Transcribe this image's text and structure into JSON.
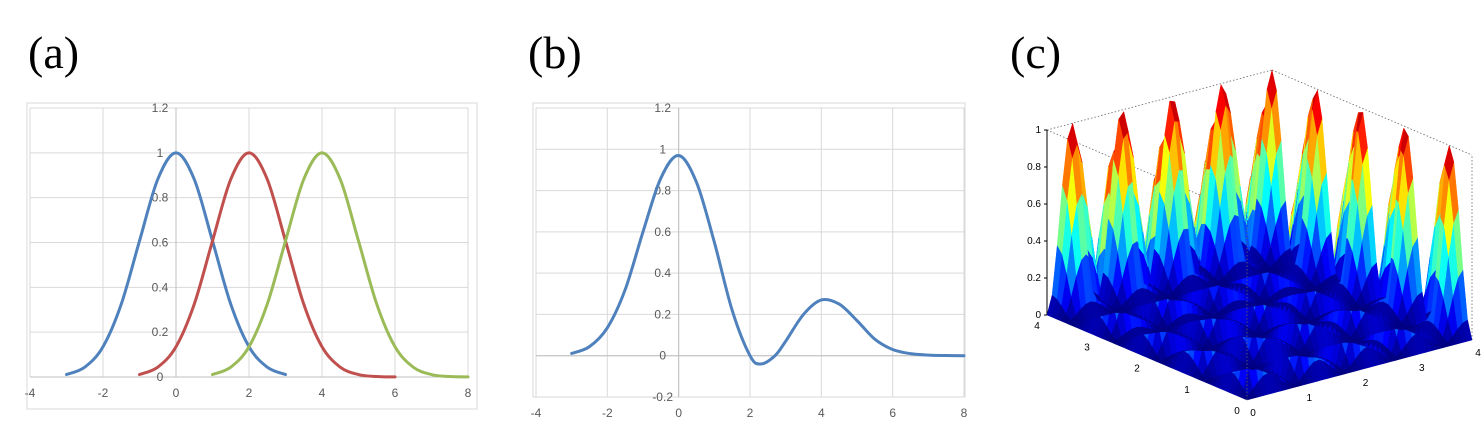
{
  "panels": [
    {
      "label": "(a)"
    },
    {
      "label": "(b)"
    },
    {
      "label": "(c)"
    }
  ],
  "chart_data": [
    {
      "type": "line",
      "title": "",
      "xlim": [
        -4,
        8
      ],
      "ylim": [
        0,
        1.2
      ],
      "xticks": [
        "-4",
        "-2",
        "0",
        "2",
        "4",
        "6",
        "8"
      ],
      "yticks": [
        "0",
        "0.2",
        "0.4",
        "0.6",
        "0.8",
        "1",
        "1.2"
      ],
      "grid": true,
      "series": [
        {
          "color": "#4F81BD",
          "x": [
            -3,
            -2.5,
            -2,
            -1.5,
            -1,
            -0.5,
            0,
            0.5,
            1,
            1.5,
            2,
            2.5,
            3
          ],
          "y": [
            0.011,
            0.044,
            0.135,
            0.325,
            0.607,
            0.882,
            1,
            0.882,
            0.607,
            0.325,
            0.135,
            0.044,
            0.011
          ]
        },
        {
          "color": "#C0504D",
          "x": [
            -1,
            -0.5,
            0,
            0.5,
            1,
            1.5,
            2,
            2.5,
            3,
            3.5,
            4,
            4.5,
            5,
            5.5,
            6
          ],
          "y": [
            0.011,
            0.044,
            0.135,
            0.325,
            0.607,
            0.882,
            1,
            0.882,
            0.607,
            0.325,
            0.135,
            0.044,
            0.011,
            0.002,
            0.0003
          ]
        },
        {
          "color": "#9BBB59",
          "x": [
            1,
            1.5,
            2,
            2.5,
            3,
            3.5,
            4,
            4.5,
            5,
            5.5,
            6,
            6.5,
            7,
            7.5,
            8
          ],
          "y": [
            0.011,
            0.044,
            0.135,
            0.325,
            0.607,
            0.882,
            1,
            0.882,
            0.607,
            0.325,
            0.135,
            0.044,
            0.011,
            0.002,
            0.0003
          ]
        }
      ]
    },
    {
      "type": "line",
      "title": "",
      "xlim": [
        -4,
        8
      ],
      "ylim": [
        -0.2,
        1.2
      ],
      "xticks": [
        "-4",
        "-2",
        "0",
        "2",
        "4",
        "6",
        "8"
      ],
      "yticks": [
        "-0.2",
        "0",
        "0.2",
        "0.4",
        "0.6",
        "0.8",
        "1",
        "1.2"
      ],
      "grid": true,
      "series": [
        {
          "color": "#4F81BD",
          "x": [
            -3,
            -2.5,
            -2,
            -1.5,
            -1,
            -0.5,
            0,
            0.5,
            1,
            1.5,
            2,
            2.3,
            2.7,
            3,
            3.5,
            4,
            4.5,
            5,
            5.5,
            6,
            6.5,
            7,
            7.5,
            8
          ],
          "y": [
            0.011,
            0.044,
            0.135,
            0.32,
            0.6,
            0.86,
            0.97,
            0.84,
            0.55,
            0.22,
            0.0,
            -0.04,
            0.0,
            0.07,
            0.2,
            0.27,
            0.25,
            0.17,
            0.08,
            0.03,
            0.01,
            0.003,
            0.001,
            0.0
          ]
        }
      ]
    },
    {
      "type": "surface",
      "title": "",
      "xlim": [
        0,
        4
      ],
      "ylim": [
        0,
        4
      ],
      "zlim": [
        0,
        1
      ],
      "xticks": [
        "0",
        "1",
        "2",
        "3",
        "4"
      ],
      "yticks": [
        "0",
        "1",
        "2",
        "3",
        "4"
      ],
      "zticks": [
        "0",
        "0.2",
        "0.4",
        "0.6",
        "0.8",
        "1"
      ],
      "colormap": "jet",
      "peaks": "5x5 grid of unit bumps"
    }
  ]
}
